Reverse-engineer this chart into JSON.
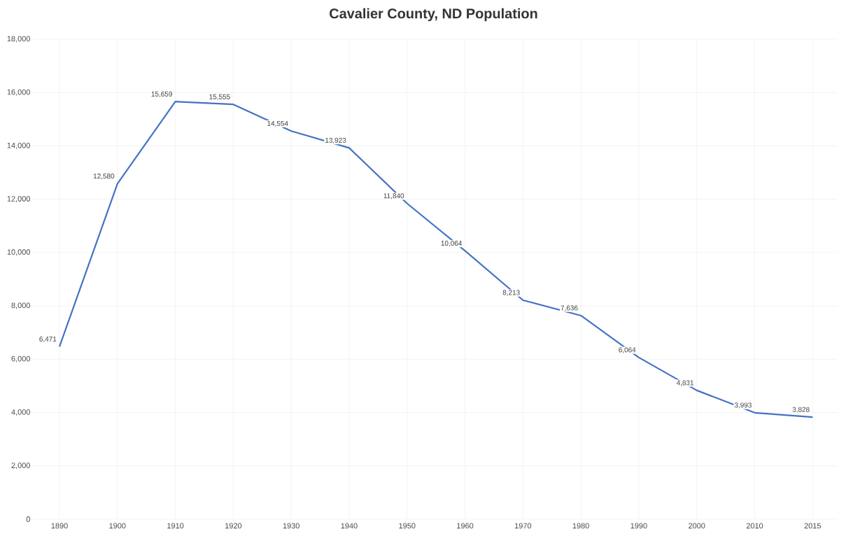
{
  "chart_data": {
    "type": "line",
    "title": "Cavalier County, ND Population",
    "categories": [
      "1890",
      "1900",
      "1910",
      "1920",
      "1930",
      "1940",
      "1950",
      "1960",
      "1970",
      "1980",
      "1990",
      "2000",
      "2010",
      "2015"
    ],
    "values": [
      6471,
      12580,
      15659,
      15555,
      14554,
      13923,
      11840,
      10064,
      8213,
      7636,
      6064,
      4831,
      3993,
      3828
    ],
    "color": "#4472c4",
    "ylim": [
      0,
      18000
    ],
    "yticks": [
      0,
      {
        "value": 2000,
        "label": "2,000"
      },
      {
        "value": 4000,
        "label": "4,000"
      },
      {
        "value": 6000,
        "label": "6,000"
      },
      {
        "value": 8000,
        "label": "8,000"
      },
      {
        "value": 10000,
        "label": "10,000"
      },
      {
        "value": 12000,
        "label": "12,000"
      },
      {
        "value": 14000,
        "label": "14,000"
      },
      {
        "value": 16000,
        "label": "16,000"
      },
      {
        "value": 18000,
        "label": "18,000"
      }
    ],
    "value_labels": [
      "6,471",
      "12,580",
      "15,659",
      "15,555",
      "14,554",
      "13,923",
      "11,840",
      "10,064",
      "8,213",
      "7,636",
      "6,064",
      "4,831",
      "3,993",
      "3,828"
    ],
    "grid": true,
    "marker": "none",
    "line_style": "solid"
  }
}
